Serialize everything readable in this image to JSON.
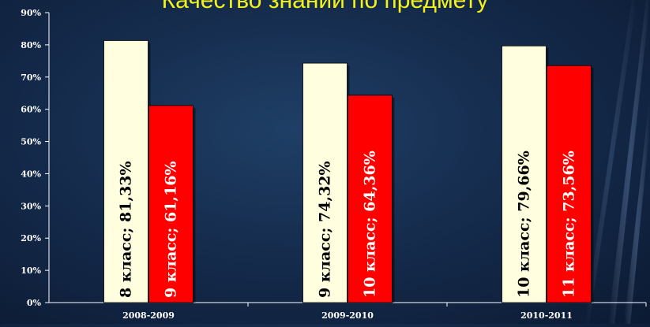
{
  "title": "Качество знаний по предмету",
  "colors": {
    "background": "#152c4d",
    "title": "#f2f21a",
    "bar_cream": "#ffffe0",
    "bar_red": "#ff0000",
    "axis": "#ffffff"
  },
  "chart_data": {
    "type": "bar",
    "title": "Качество знаний по предмету",
    "xlabel": "",
    "ylabel": "",
    "ylim": [
      0,
      90
    ],
    "yticks": [
      "0%",
      "10%",
      "20%",
      "30%",
      "40%",
      "50%",
      "60%",
      "70%",
      "80%",
      "90%"
    ],
    "grid": false,
    "legend": "none",
    "categories": [
      "2008-2009",
      "2009-2010",
      "2010-2011"
    ],
    "bars": [
      [
        {
          "value": 81.33,
          "label": "8 класс; 81,33%",
          "color": "#ffffe0",
          "label_color": "#000000"
        },
        {
          "value": 61.16,
          "label": "9 класс; 61,16%",
          "color": "#ff0000",
          "label_color": "#ffffff"
        }
      ],
      [
        {
          "value": 74.32,
          "label": "9 класс; 74,32%",
          "color": "#ffffe0",
          "label_color": "#000000"
        },
        {
          "value": 64.36,
          "label": "10 класс; 64,36%",
          "color": "#ff0000",
          "label_color": "#ffffff"
        }
      ],
      [
        {
          "value": 79.66,
          "label": "10 класс; 79,66%",
          "color": "#ffffe0",
          "label_color": "#000000"
        },
        {
          "value": 73.56,
          "label": "11 класс; 73,56%",
          "color": "#ff0000",
          "label_color": "#ffffff"
        }
      ]
    ]
  }
}
